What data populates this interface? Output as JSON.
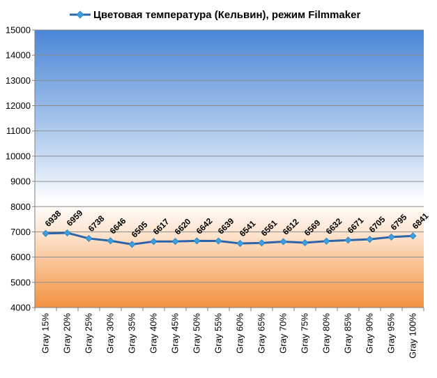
{
  "chart_data": {
    "type": "line",
    "title": "Цветовая температура (Кельвин), режим Filmmaker",
    "categories": [
      "Gray 15%",
      "Gray 20%",
      "Gray 25%",
      "Gray 30%",
      "Gray 35%",
      "Gray 40%",
      "Gray 45%",
      "Gray 50%",
      "Gray 55%",
      "Gray 60%",
      "Gray 65%",
      "Gray 70%",
      "Gray 75%",
      "Gray 80%",
      "Gray 85%",
      "Gray 90%",
      "Gray 95%",
      "Gray 100%"
    ],
    "series": [
      {
        "name": "Цветовая температура (Кельвин), режим Filmmaker",
        "values": [
          6938,
          6959,
          6738,
          6646,
          6505,
          6617,
          6620,
          6642,
          6639,
          6541,
          6561,
          6612,
          6569,
          6632,
          6671,
          6705,
          6795,
          6841
        ],
        "color": "#2e63a8",
        "marker_color": "#3aa0e0"
      }
    ],
    "yticks": [
      "4000",
      "5000",
      "6000",
      "7000",
      "8000",
      "9000",
      "10000",
      "11000",
      "12000",
      "13000",
      "14000",
      "15000"
    ],
    "ylim": [
      4000,
      15000
    ],
    "grid": "horizontal",
    "legend_position": "top",
    "background": "gradient: blue at top, white near 7000, orange at bottom"
  }
}
